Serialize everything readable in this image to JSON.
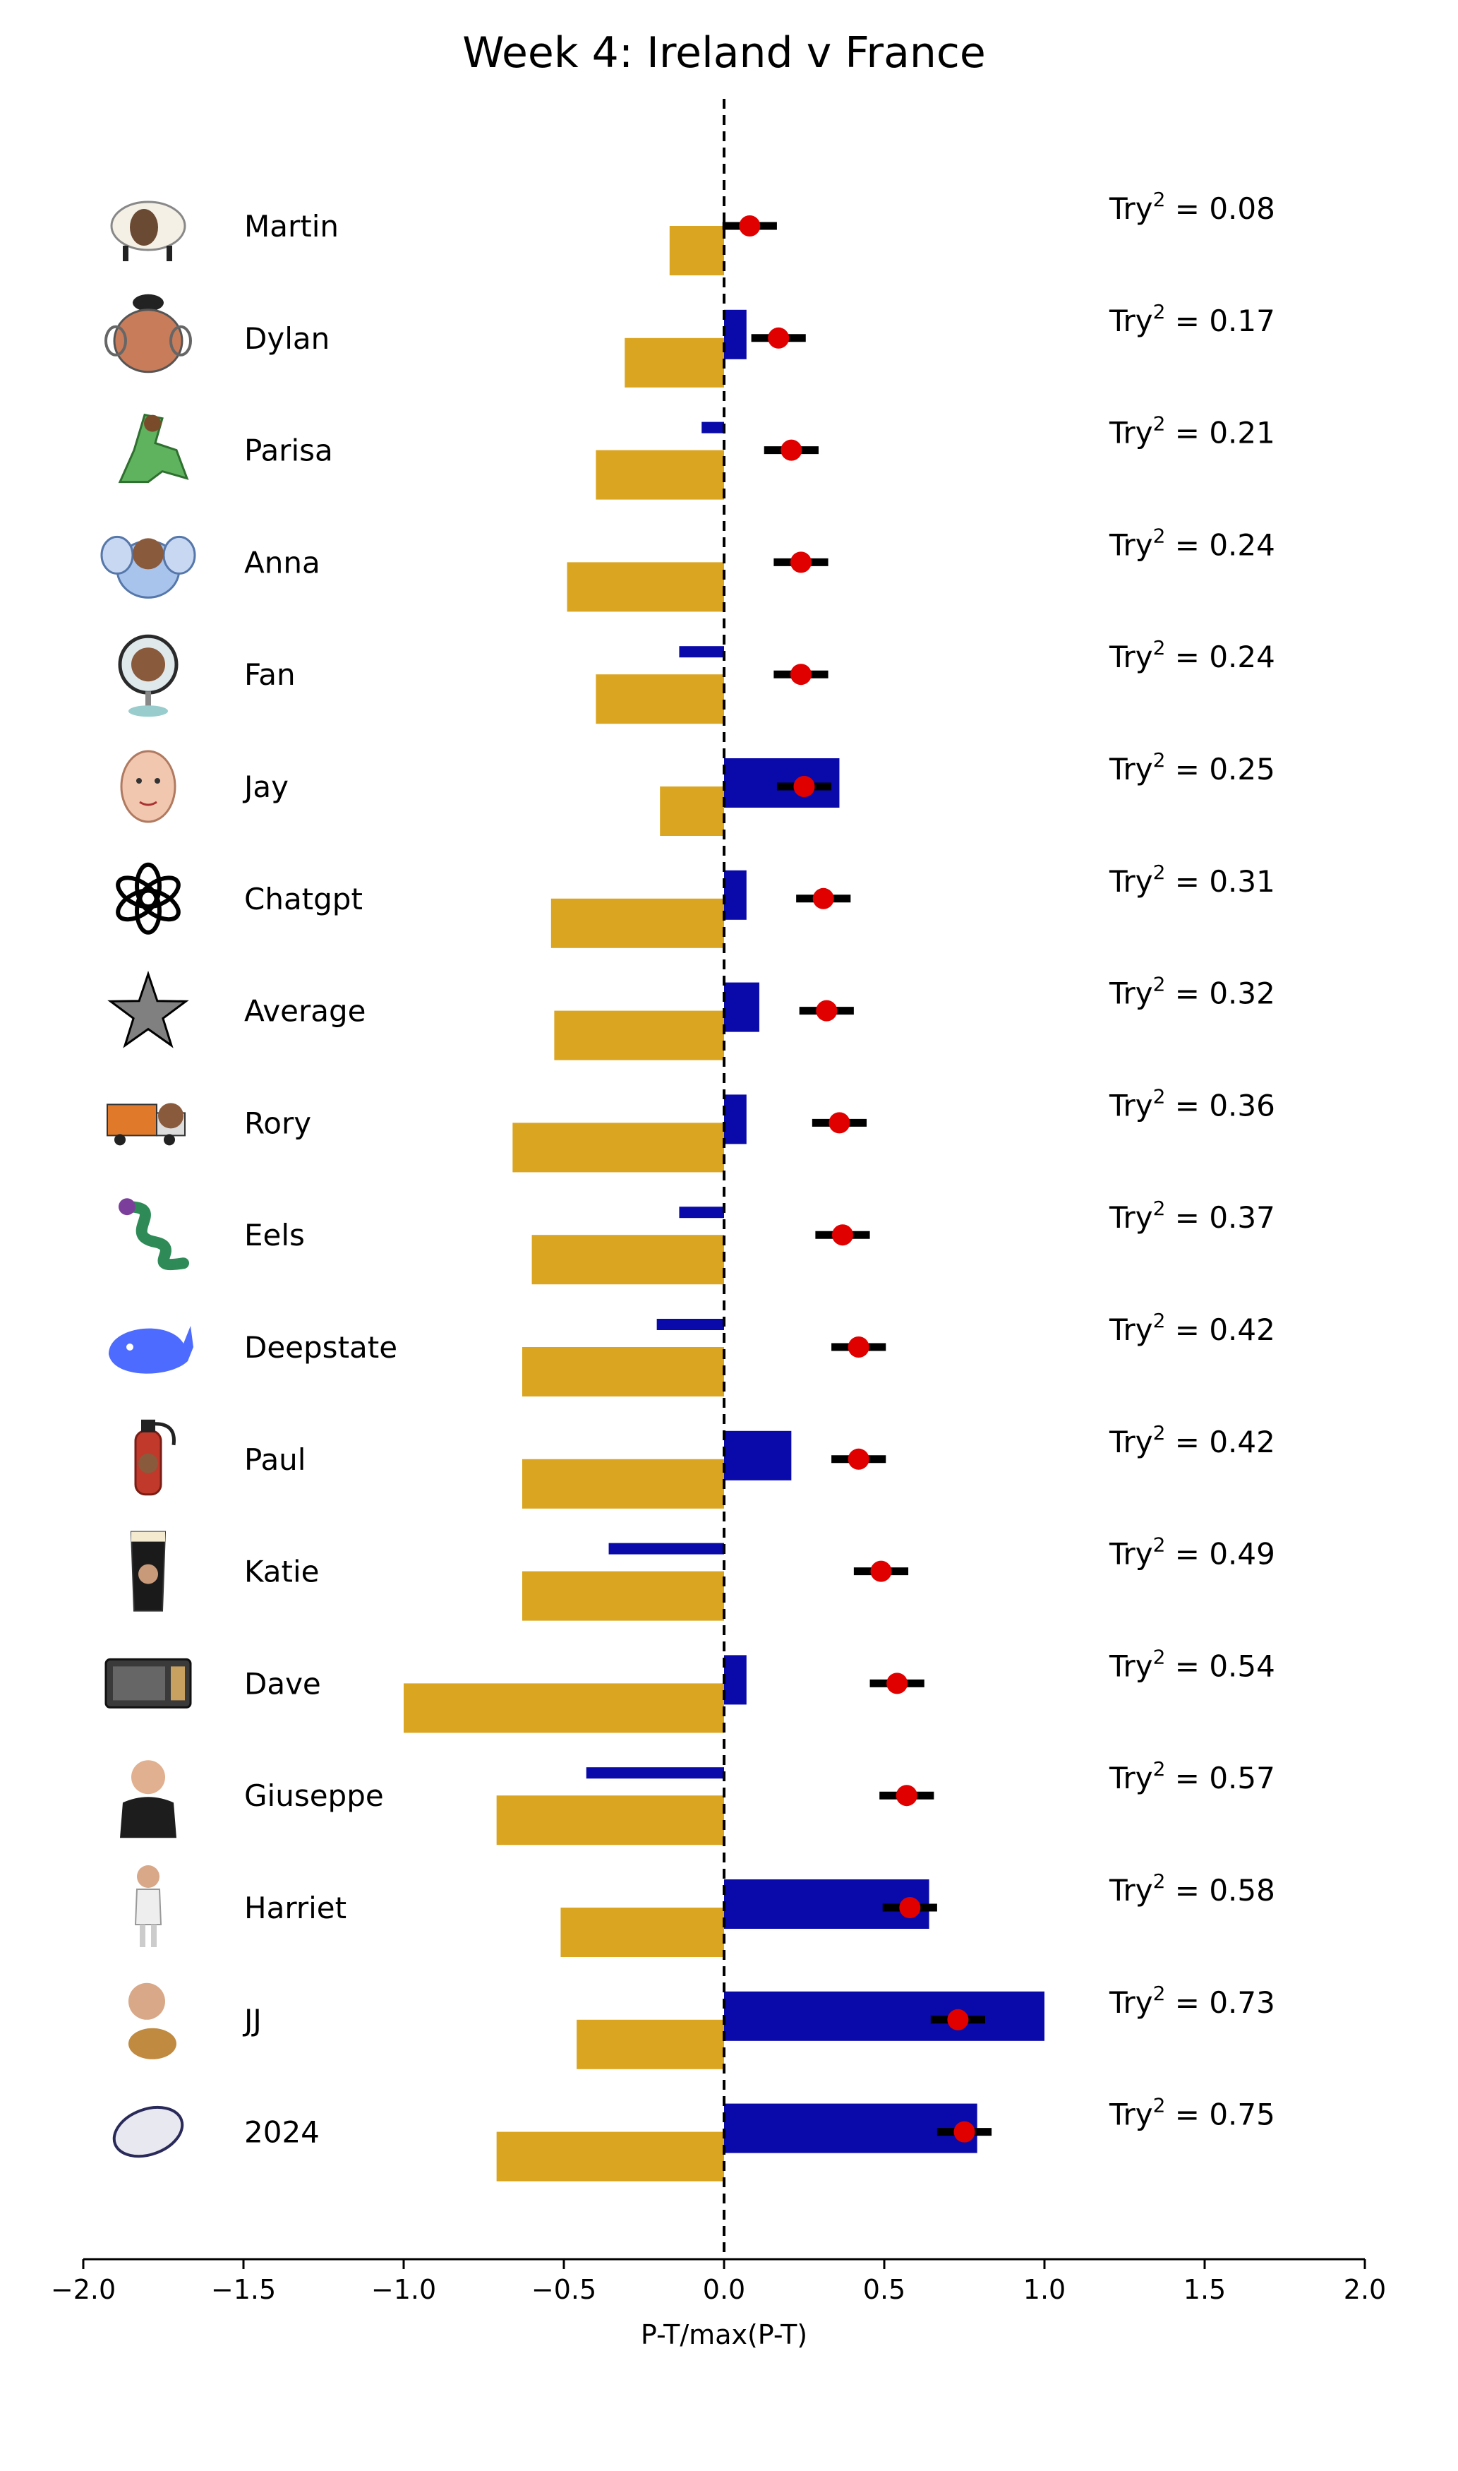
{
  "chart_data": {
    "type": "bar",
    "title": "Week 4: Ireland v France",
    "xlabel": "P-T/max(P-T)",
    "xlim": [
      -2.0,
      2.0
    ],
    "xticks": [
      -2.0,
      -1.5,
      -1.0,
      -0.5,
      0.0,
      0.5,
      1.0,
      1.5,
      2.0
    ],
    "xtick_labels": [
      "−2.0",
      "−1.5",
      "−1.0",
      "−0.5",
      "0.0",
      "0.5",
      "1.0",
      "1.5",
      "2.0"
    ],
    "reference_line": {
      "x": 0.0,
      "style": "dashed"
    },
    "score_prefix": "Try",
    "score_exponent": "2",
    "score_joiner": " = ",
    "colors": {
      "negative_bar": "#DAA520",
      "positive_bar": "#0A0AAA",
      "point": "#E00000",
      "errorbar": "#000000"
    },
    "rows": [
      {
        "name": "Martin",
        "icon": "sheep-icon",
        "gold": -0.17,
        "blue": 0.0,
        "point": 0.08,
        "score": "0.08"
      },
      {
        "name": "Dylan",
        "icon": "potato-head-icon",
        "gold": -0.31,
        "blue": 0.07,
        "point": 0.17,
        "score": "0.17"
      },
      {
        "name": "Parisa",
        "icon": "dinosaur-icon",
        "gold": -0.4,
        "blue": -0.07,
        "point": 0.21,
        "score": "0.21"
      },
      {
        "name": "Anna",
        "icon": "elephant-icon",
        "gold": -0.49,
        "blue": 0.0,
        "point": 0.24,
        "score": "0.24"
      },
      {
        "name": "Fan",
        "icon": "desk-fan-icon",
        "gold": -0.4,
        "blue": -0.14,
        "point": 0.24,
        "score": "0.24"
      },
      {
        "name": "Jay",
        "icon": "face-icon",
        "gold": -0.2,
        "blue": 0.36,
        "point": 0.25,
        "score": "0.25"
      },
      {
        "name": "Chatgpt",
        "icon": "openai-logo-icon",
        "gold": -0.54,
        "blue": 0.07,
        "point": 0.31,
        "score": "0.31"
      },
      {
        "name": "Average",
        "icon": "star-icon",
        "gold": -0.53,
        "blue": 0.11,
        "point": 0.32,
        "score": "0.32"
      },
      {
        "name": "Rory",
        "icon": "truck-icon",
        "gold": -0.66,
        "blue": 0.07,
        "point": 0.36,
        "score": "0.36"
      },
      {
        "name": "Eels",
        "icon": "eel-icon",
        "gold": -0.6,
        "blue": -0.14,
        "point": 0.37,
        "score": "0.37"
      },
      {
        "name": "Deepstate",
        "icon": "whale-icon",
        "gold": -0.63,
        "blue": -0.21,
        "point": 0.42,
        "score": "0.42"
      },
      {
        "name": "Paul",
        "icon": "fire-extinguisher-icon",
        "gold": -0.63,
        "blue": 0.21,
        "point": 0.42,
        "score": "0.42"
      },
      {
        "name": "Katie",
        "icon": "pint-glass-icon",
        "gold": -0.63,
        "blue": -0.36,
        "point": 0.49,
        "score": "0.49"
      },
      {
        "name": "Dave",
        "icon": "microwave-icon",
        "gold": -1.0,
        "blue": 0.07,
        "point": 0.54,
        "score": "0.54"
      },
      {
        "name": "Giuseppe",
        "icon": "person-icon",
        "gold": -0.71,
        "blue": -0.43,
        "point": 0.57,
        "score": "0.57"
      },
      {
        "name": "Harriet",
        "icon": "person-standing-icon",
        "gold": -0.51,
        "blue": 0.64,
        "point": 0.58,
        "score": "0.58"
      },
      {
        "name": "JJ",
        "icon": "person-with-dog-icon",
        "gold": -0.46,
        "blue": 1.0,
        "point": 0.73,
        "score": "0.73"
      },
      {
        "name": "2024",
        "icon": "rugby-ball-icon",
        "gold": -0.71,
        "blue": 0.79,
        "point": 0.75,
        "score": "0.75"
      }
    ],
    "error_halfwidth": 0.085,
    "grid": false,
    "legend": "none"
  }
}
